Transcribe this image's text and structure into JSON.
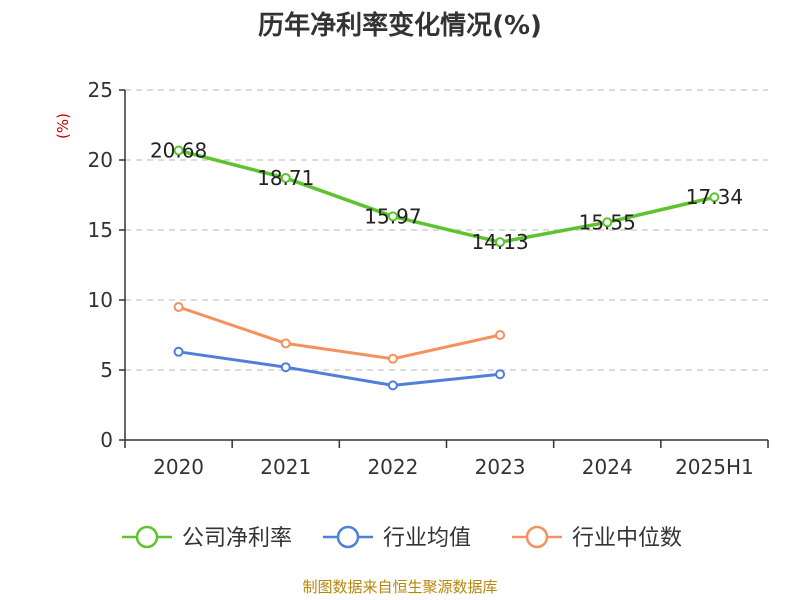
{
  "chart_data": {
    "type": "line",
    "title": "历年净利率变化情况(%)",
    "ylabel": "(%)",
    "xlabel": "",
    "categories": [
      "2020",
      "2021",
      "2022",
      "2023",
      "2024",
      "2025H1"
    ],
    "ylim": [
      0,
      25
    ],
    "yticks": [
      "0",
      "5",
      "10",
      "15",
      "20",
      "25"
    ],
    "grid": true,
    "legend_position": "bottom",
    "series": [
      {
        "name": "公司净利率",
        "color": "#5ec32f",
        "values": [
          20.68,
          18.71,
          15.97,
          14.13,
          15.55,
          17.34
        ],
        "labels": [
          "20.68",
          "18.71",
          "15.97",
          "14.13",
          "15.55",
          "17.34"
        ]
      },
      {
        "name": "行业均值",
        "color": "#4f7fd9",
        "values": [
          6.3,
          5.2,
          3.9,
          4.7,
          null,
          null
        ]
      },
      {
        "name": "行业中位数",
        "color": "#f4915e",
        "values": [
          9.5,
          6.9,
          5.8,
          7.5,
          null,
          null
        ]
      }
    ]
  },
  "source": "制图数据来自恒生聚源数据库"
}
